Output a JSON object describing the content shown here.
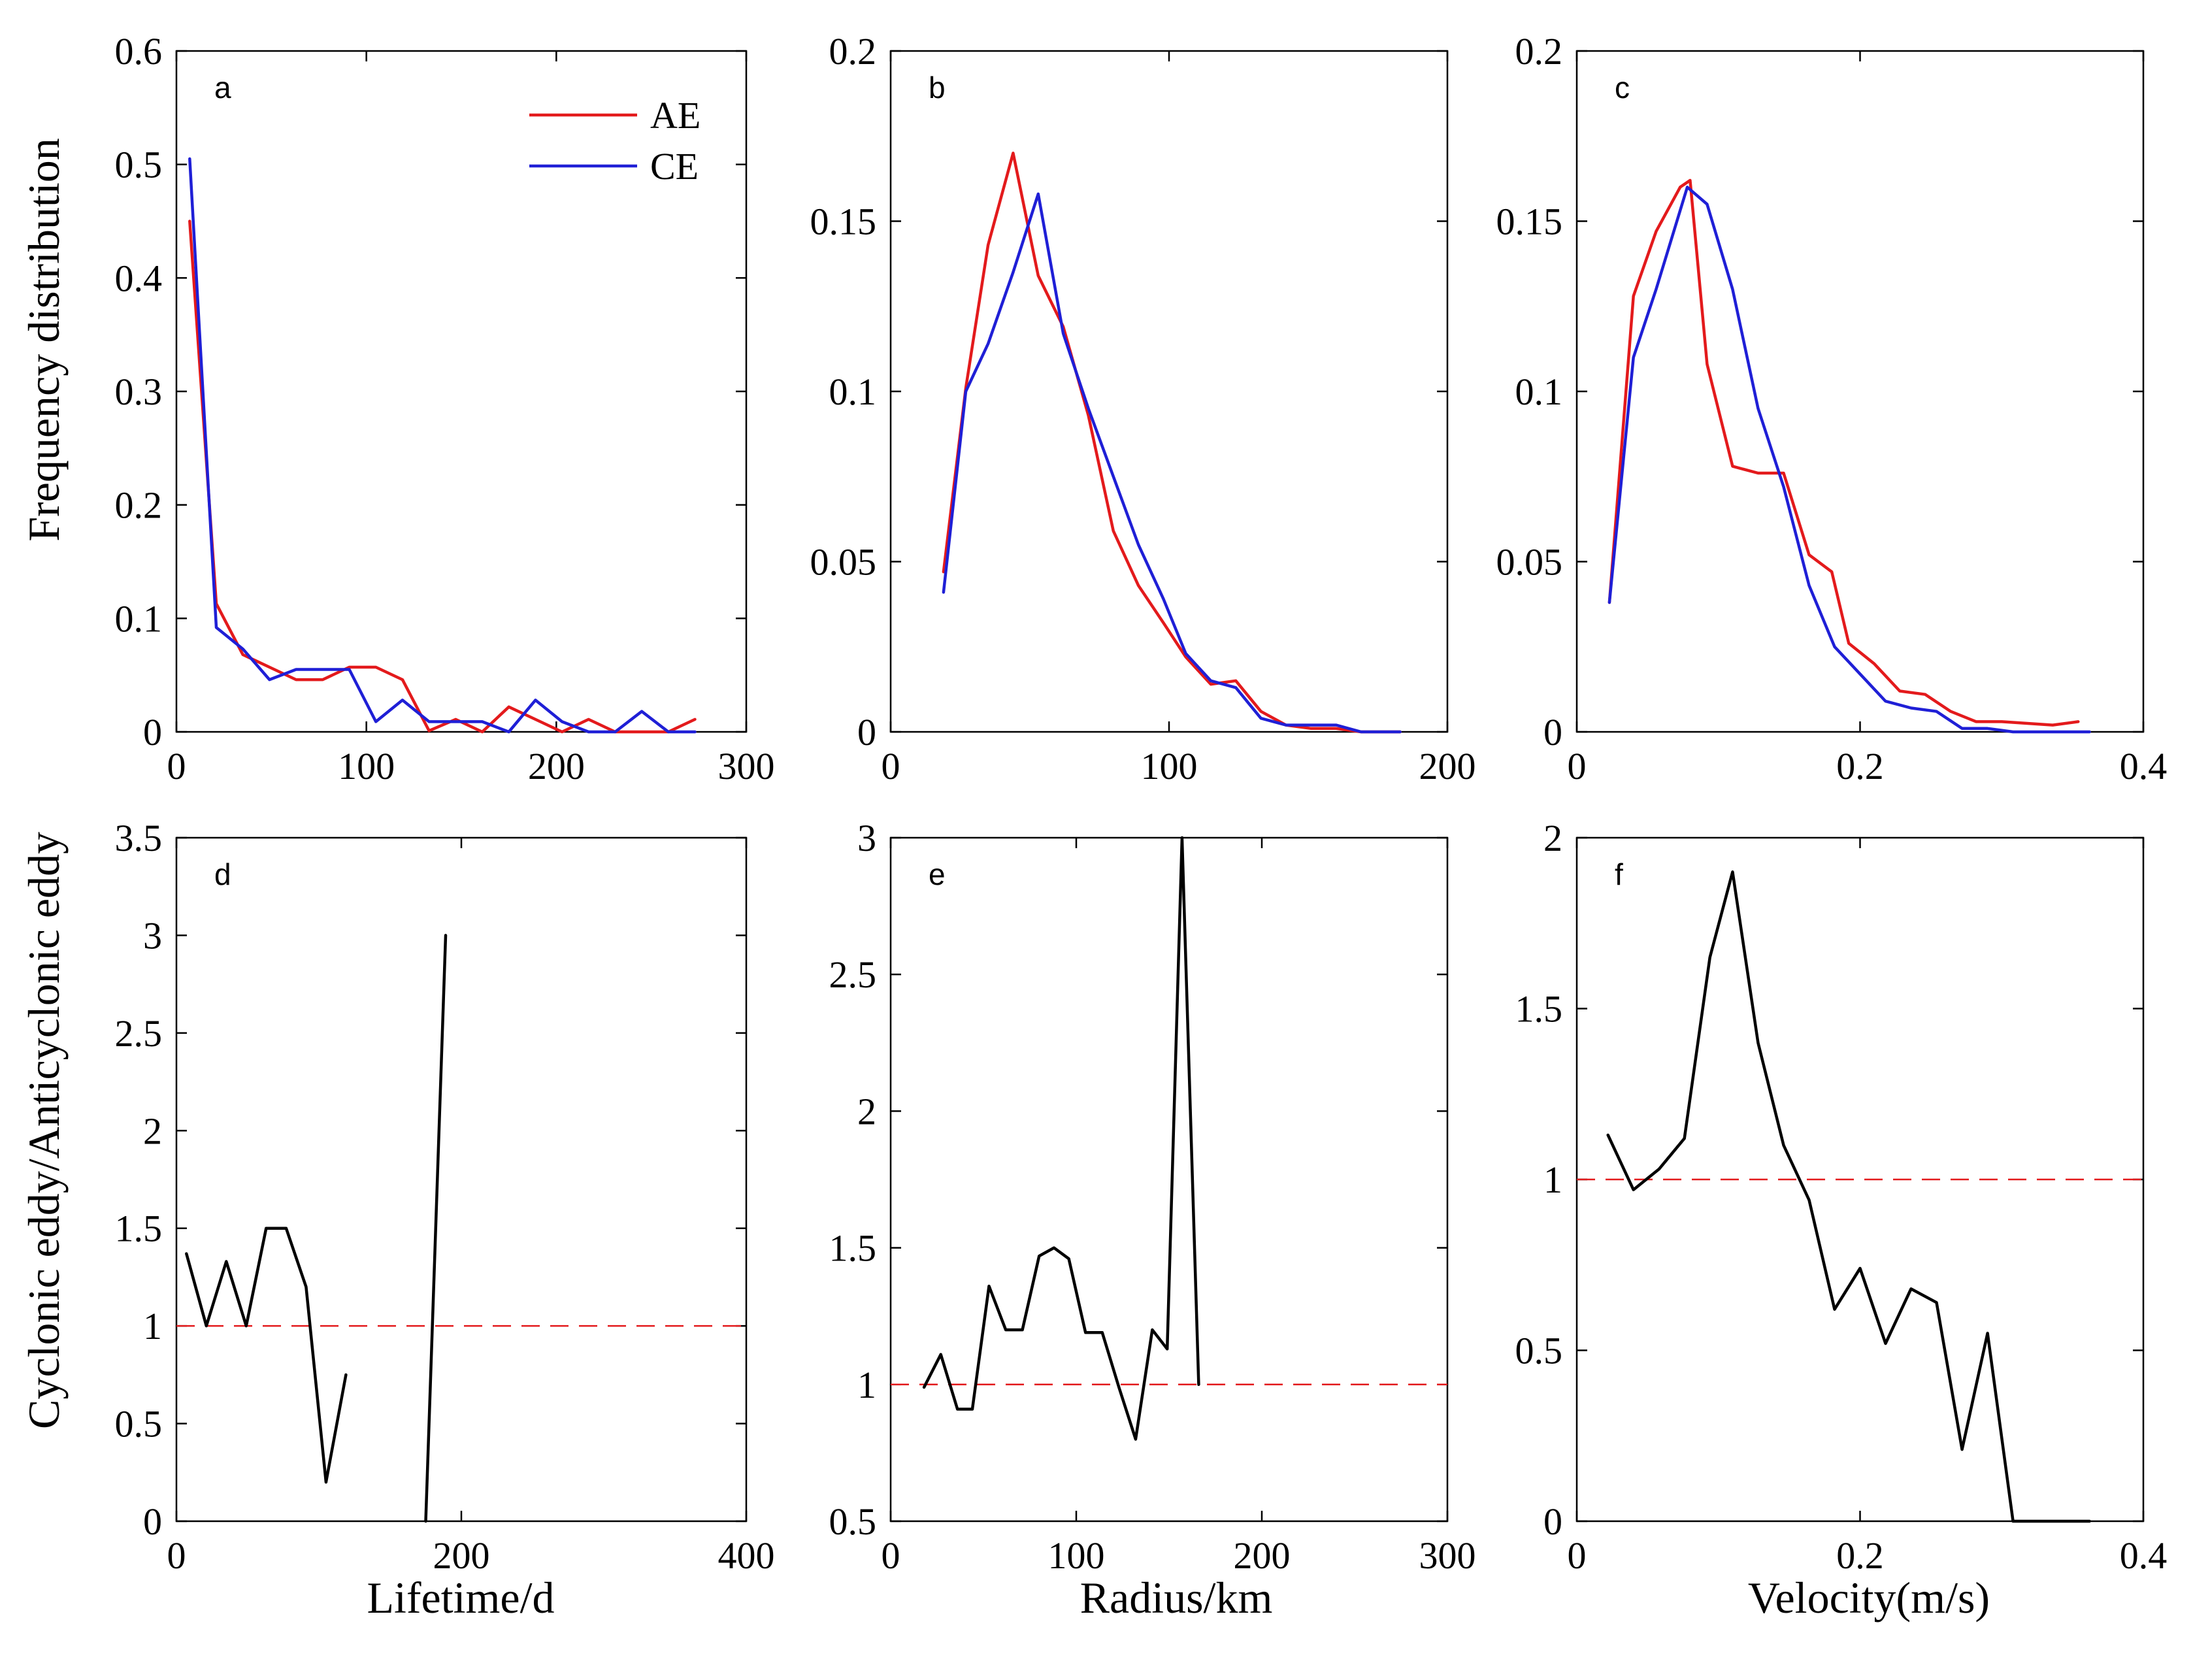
{
  "figure": {
    "ylabel_top": "Frequency distribution",
    "ylabel_bottom": "Cyclonic eddy/Anticyclonic eddy",
    "xlabel_lifetime": "Lifetime/d",
    "xlabel_radius": "Radius/km",
    "xlabel_velocity": "Velocity(m/s)",
    "legend": [
      {
        "label": "AE",
        "color": "#e31a1c"
      },
      {
        "label": "CE",
        "color": "#1f1fd6"
      }
    ]
  },
  "chart_data": [
    {
      "type": "line",
      "panel": "a",
      "xlim": [
        0,
        300
      ],
      "ylim": [
        0,
        0.6
      ],
      "xticks": [
        0,
        100,
        200,
        300
      ],
      "yticks": [
        0,
        0.1,
        0.2,
        0.3,
        0.4,
        0.5,
        0.6
      ],
      "xlabel": "",
      "ylabel": "Frequency distribution",
      "series": [
        {
          "name": "AE",
          "color": "#e31a1c",
          "x": [
            7,
            21,
            35,
            49,
            63,
            77,
            91,
            105,
            119,
            133,
            147,
            161,
            175,
            189,
            203,
            217,
            231,
            245,
            259,
            273
          ],
          "y": [
            0.45,
            0.113,
            0.068,
            0.057,
            0.046,
            0.046,
            0.057,
            0.057,
            0.046,
            0.001,
            0.011,
            0.0,
            0.022,
            0.011,
            0.0,
            0.011,
            0.0,
            0.0,
            0.0,
            0.011
          ]
        },
        {
          "name": "CE",
          "color": "#1f1fd6",
          "x": [
            7,
            21,
            35,
            49,
            63,
            77,
            91,
            105,
            119,
            133,
            147,
            161,
            175,
            189,
            203,
            217,
            231,
            245,
            259,
            273
          ],
          "y": [
            0.505,
            0.092,
            0.073,
            0.046,
            0.055,
            0.055,
            0.055,
            0.009,
            0.028,
            0.009,
            0.009,
            0.009,
            0.0,
            0.028,
            0.009,
            0.0,
            0.0,
            0.018,
            0.0,
            0.0
          ]
        }
      ]
    },
    {
      "type": "line",
      "panel": "b",
      "xlim": [
        0,
        200
      ],
      "ylim": [
        0,
        0.2
      ],
      "xticks": [
        0,
        100,
        200
      ],
      "yticks": [
        0,
        0.05,
        0.1,
        0.15,
        0.2
      ],
      "xlabel": "",
      "ylabel": "",
      "series": [
        {
          "name": "AE",
          "color": "#e31a1c",
          "x": [
            19,
            27,
            35,
            44,
            53,
            62,
            71,
            80,
            89,
            98,
            106,
            115,
            124,
            133,
            142,
            151,
            160,
            169,
            178,
            183
          ],
          "y": [
            0.047,
            0.101,
            0.143,
            0.17,
            0.134,
            0.119,
            0.093,
            0.059,
            0.043,
            0.032,
            0.022,
            0.014,
            0.015,
            0.006,
            0.002,
            0.001,
            0.001,
            0.0,
            0.0,
            0.0
          ]
        },
        {
          "name": "CE",
          "color": "#1f1fd6",
          "x": [
            19,
            27,
            35,
            44,
            53,
            62,
            71,
            80,
            89,
            98,
            106,
            115,
            124,
            133,
            142,
            151,
            160,
            169,
            178,
            183
          ],
          "y": [
            0.041,
            0.1,
            0.114,
            0.135,
            0.158,
            0.117,
            0.095,
            0.075,
            0.055,
            0.039,
            0.023,
            0.015,
            0.013,
            0.004,
            0.002,
            0.002,
            0.002,
            0.0,
            0.0,
            0.0
          ]
        }
      ]
    },
    {
      "type": "line",
      "panel": "c",
      "xlim": [
        0,
        0.4
      ],
      "ylim": [
        0,
        0.2
      ],
      "xticks": [
        0,
        0.2,
        0.4
      ],
      "yticks": [
        0,
        0.05,
        0.1,
        0.15,
        0.2
      ],
      "xlabel": "",
      "ylabel": "",
      "series": [
        {
          "name": "AE",
          "color": "#e31a1c",
          "x": [
            0.023,
            0.04,
            0.056,
            0.073,
            0.08,
            0.092,
            0.11,
            0.128,
            0.146,
            0.164,
            0.18,
            0.192,
            0.21,
            0.228,
            0.246,
            0.264,
            0.282,
            0.3,
            0.336,
            0.354
          ],
          "y": [
            0.038,
            0.128,
            0.147,
            0.16,
            0.162,
            0.108,
            0.078,
            0.076,
            0.076,
            0.052,
            0.047,
            0.026,
            0.02,
            0.012,
            0.011,
            0.006,
            0.003,
            0.003,
            0.002,
            0.003
          ]
        },
        {
          "name": "CE",
          "color": "#1f1fd6",
          "x": [
            0.023,
            0.04,
            0.056,
            0.078,
            0.092,
            0.11,
            0.128,
            0.146,
            0.164,
            0.182,
            0.2,
            0.218,
            0.236,
            0.254,
            0.272,
            0.29,
            0.308,
            0.326,
            0.344,
            0.362
          ],
          "y": [
            0.038,
            0.11,
            0.13,
            0.16,
            0.155,
            0.13,
            0.095,
            0.072,
            0.043,
            0.025,
            0.017,
            0.009,
            0.007,
            0.006,
            0.001,
            0.001,
            0.0,
            0.0,
            0.0,
            0.0
          ]
        }
      ]
    },
    {
      "type": "line",
      "panel": "d",
      "xlim": [
        0,
        400
      ],
      "ylim": [
        0,
        3.5
      ],
      "xticks": [
        0,
        200,
        400
      ],
      "yticks": [
        0,
        0.5,
        1,
        1.5,
        2,
        2.5,
        3,
        3.5
      ],
      "xlabel": "Lifetime/d",
      "ylabel": "Cyclonic eddy/Anticyclonic eddy",
      "reference_line": {
        "y": 1,
        "color": "#e31a1c",
        "style": "dashed"
      },
      "series": [
        {
          "name": "",
          "color": "#000000",
          "segments": [
            {
              "x": [
                7,
                21,
                35,
                49,
                63,
                77,
                91,
                105,
                119
              ],
              "y": [
                1.37,
                1.0,
                1.33,
                1.0,
                1.5,
                1.5,
                1.2,
                0.2,
                0.75
              ]
            },
            {
              "x": [
                175,
                189
              ],
              "y": [
                0.0,
                3.0
              ]
            }
          ]
        }
      ]
    },
    {
      "type": "line",
      "panel": "e",
      "xlim": [
        0,
        300
      ],
      "ylim": [
        0.5,
        3
      ],
      "xticks": [
        0,
        100,
        200,
        300
      ],
      "yticks": [
        0.5,
        1,
        1.5,
        2,
        2.5,
        3
      ],
      "xlabel": "Radius/km",
      "ylabel": "",
      "reference_line": {
        "y": 1,
        "color": "#e31a1c",
        "style": "dashed"
      },
      "series": [
        {
          "name": "",
          "color": "#000000",
          "segments": [
            {
              "x": [
                18,
                27,
                36,
                44,
                53,
                62,
                71,
                80,
                88,
                96,
                105,
                114,
                123,
                132,
                141,
                149,
                157,
                166
              ],
              "y": [
                0.99,
                1.11,
                0.91,
                0.91,
                1.36,
                1.2,
                1.2,
                1.47,
                1.5,
                1.46,
                1.19,
                1.19,
                0.99,
                0.8,
                1.2,
                1.13,
                3.0,
                1.0
              ]
            }
          ]
        }
      ]
    },
    {
      "type": "line",
      "panel": "f",
      "xlim": [
        0,
        0.4
      ],
      "ylim": [
        0,
        2
      ],
      "xticks": [
        0,
        0.2,
        0.4
      ],
      "yticks": [
        0,
        0.5,
        1,
        1.5,
        2
      ],
      "xlabel": "Velocity(m/s)",
      "ylabel": "",
      "reference_line": {
        "y": 1,
        "color": "#e31a1c",
        "style": "dashed"
      },
      "series": [
        {
          "name": "",
          "color": "#000000",
          "segments": [
            {
              "x": [
                0.022,
                0.04,
                0.058,
                0.076,
                0.094,
                0.11,
                0.128,
                0.146,
                0.164,
                0.182,
                0.2,
                0.218,
                0.236,
                0.254,
                0.272,
                0.29,
                0.308,
                0.326,
                0.344,
                0.362
              ],
              "y": [
                1.13,
                0.97,
                1.03,
                1.12,
                1.65,
                1.9,
                1.4,
                1.1,
                0.94,
                0.62,
                0.74,
                0.52,
                0.68,
                0.64,
                0.21,
                0.55,
                0.0,
                0.0,
                0.0,
                0.0
              ]
            }
          ]
        }
      ]
    }
  ]
}
